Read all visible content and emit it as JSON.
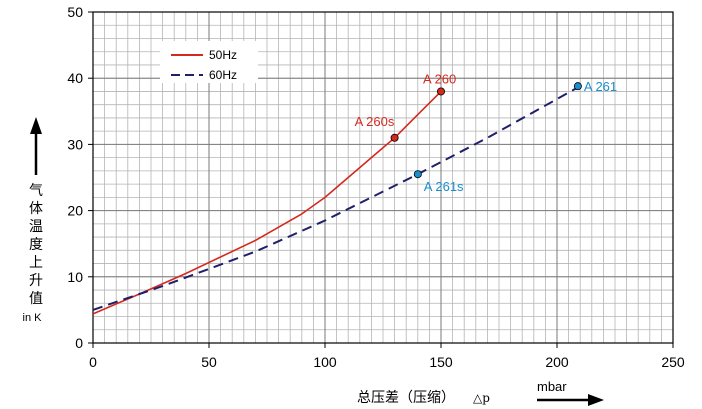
{
  "chart_data": {
    "type": "line",
    "ylabel": [
      "气",
      "体",
      "温",
      "度",
      "上",
      "升",
      "值"
    ],
    "yunit": "in K",
    "xlabel": "总压差（压缩）",
    "xlabel_symbol": "△p",
    "xunit": "mbar",
    "xlim": [
      0,
      250
    ],
    "ylim": [
      0,
      50
    ],
    "xticks": [
      0,
      50,
      100,
      150,
      200,
      250
    ],
    "yticks": [
      0,
      10,
      20,
      30,
      40,
      50
    ],
    "grid": true,
    "legend_position": "top-left",
    "series": [
      {
        "name": "50Hz",
        "color": "#d42a1e",
        "style": "solid",
        "x": [
          0,
          20,
          40,
          70,
          90,
          100,
          110,
          120,
          130,
          140,
          150
        ],
        "y": [
          4.4,
          7.4,
          10.5,
          15.5,
          19.5,
          22,
          25,
          28,
          31,
          34.5,
          38
        ]
      },
      {
        "name": "60Hz",
        "color": "#1f1f6b",
        "style": "dashed",
        "x": [
          0,
          30,
          50,
          70,
          100,
          140,
          170,
          210
        ],
        "y": [
          5,
          8.6,
          11.2,
          13.8,
          18.5,
          25.5,
          31,
          38.8
        ]
      }
    ],
    "annotations": [
      {
        "text": "A 260",
        "x": 150,
        "y": 38,
        "color": "#d42a1e",
        "marker": "#d42a1e"
      },
      {
        "text": "A 260s",
        "x": 130,
        "y": 31,
        "color": "#d42a1e",
        "marker": "#d42a1e"
      },
      {
        "text": "A 261",
        "x": 209,
        "y": 38.8,
        "color": "#1a8fd0",
        "marker": "#1a8fd0"
      },
      {
        "text": "A 261s",
        "x": 140,
        "y": 25.5,
        "color": "#1a8fd0",
        "marker": "#1a8fd0"
      }
    ]
  }
}
